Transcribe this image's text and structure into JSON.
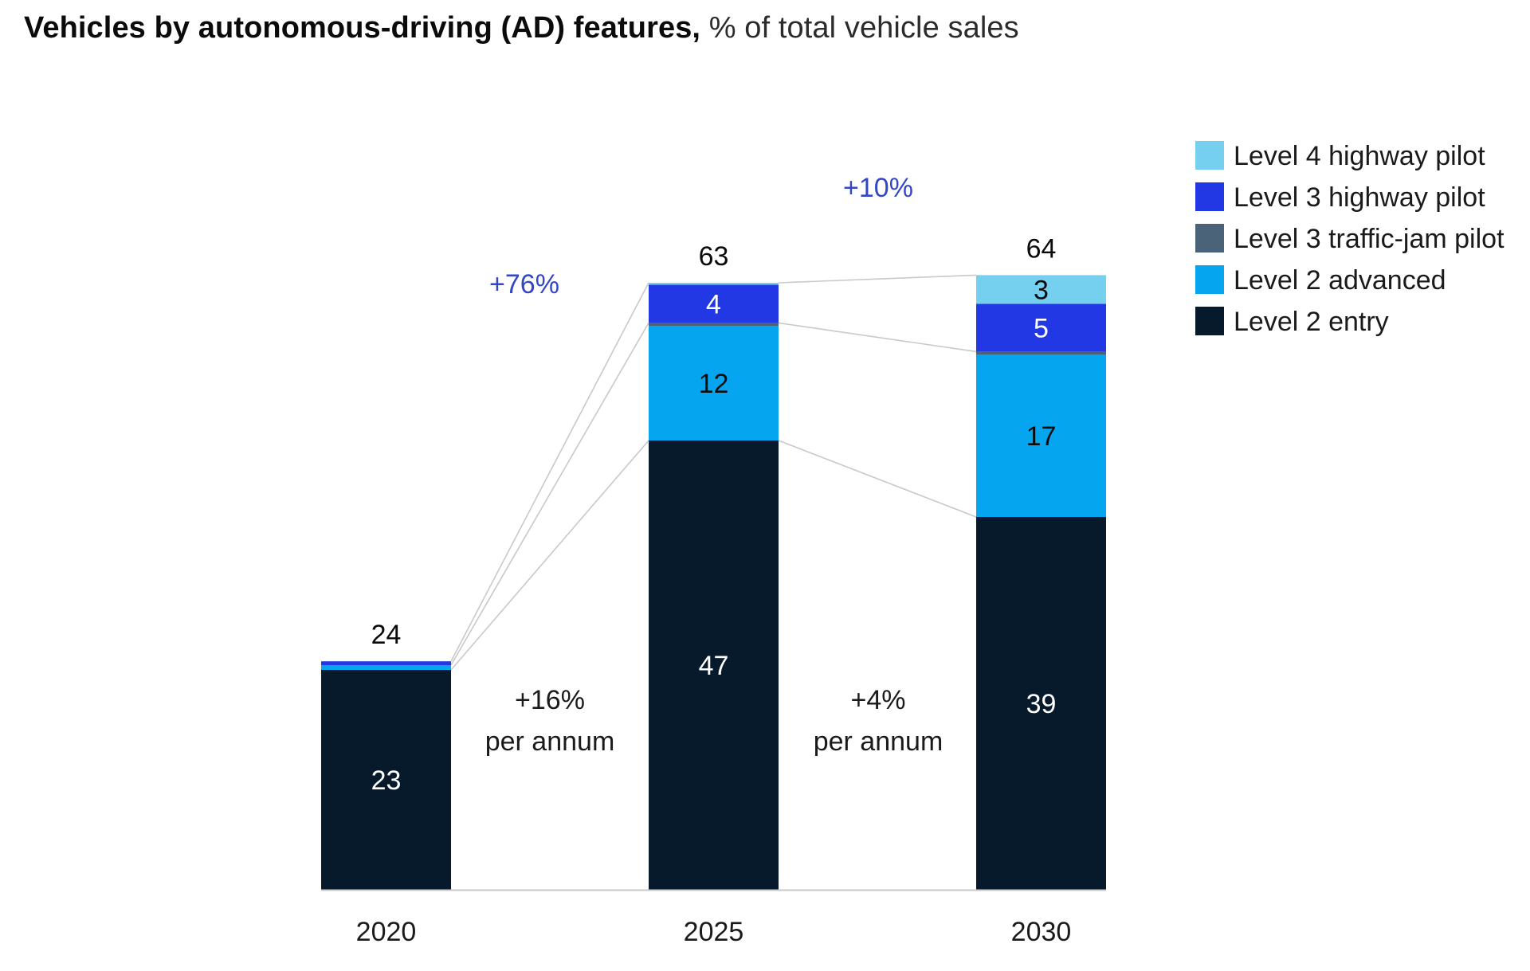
{
  "chart_data": {
    "type": "bar",
    "stacked": true,
    "title": "Vehicles by autonomous-driving (AD) features,",
    "subtitle": "% of total vehicle sales",
    "categories": [
      "2020",
      "2025",
      "2030"
    ],
    "totals": [
      "24",
      "63",
      "64"
    ],
    "series": [
      {
        "name": "Level 2 entry",
        "color": "#061a2c",
        "values": [
          23,
          47,
          39
        ],
        "labels": [
          "23",
          "47",
          "39"
        ]
      },
      {
        "name": "Level 2 advanced",
        "color": "#05a6ef",
        "values": [
          0.5,
          12,
          17
        ],
        "labels": [
          "",
          "12",
          "17"
        ]
      },
      {
        "name": "Level 3 traffic-jam pilot",
        "color": "#4b6378",
        "values": [
          0,
          0.3,
          0.3
        ],
        "labels": [
          "",
          "",
          ""
        ]
      },
      {
        "name": "Level 3 highway pilot",
        "color": "#2138e4",
        "values": [
          0.4,
          4,
          5
        ],
        "labels": [
          "",
          "4",
          "5"
        ]
      },
      {
        "name": "Level 4 highway pilot",
        "color": "#75d0f0",
        "values": [
          0,
          0.2,
          3
        ],
        "labels": [
          "",
          "",
          "3"
        ]
      }
    ],
    "annotations": [
      {
        "text": "+76%",
        "color": "#3346c7"
      },
      {
        "text": "+10%",
        "color": "#3346c7"
      },
      {
        "text": "+16%",
        "text2": "per annum",
        "color": "#1a1a1a"
      },
      {
        "text": "+4%",
        "text2": "per annum",
        "color": "#1a1a1a"
      }
    ],
    "legend_position": "top-right",
    "ylim": [
      0,
      64
    ],
    "grid": false
  }
}
